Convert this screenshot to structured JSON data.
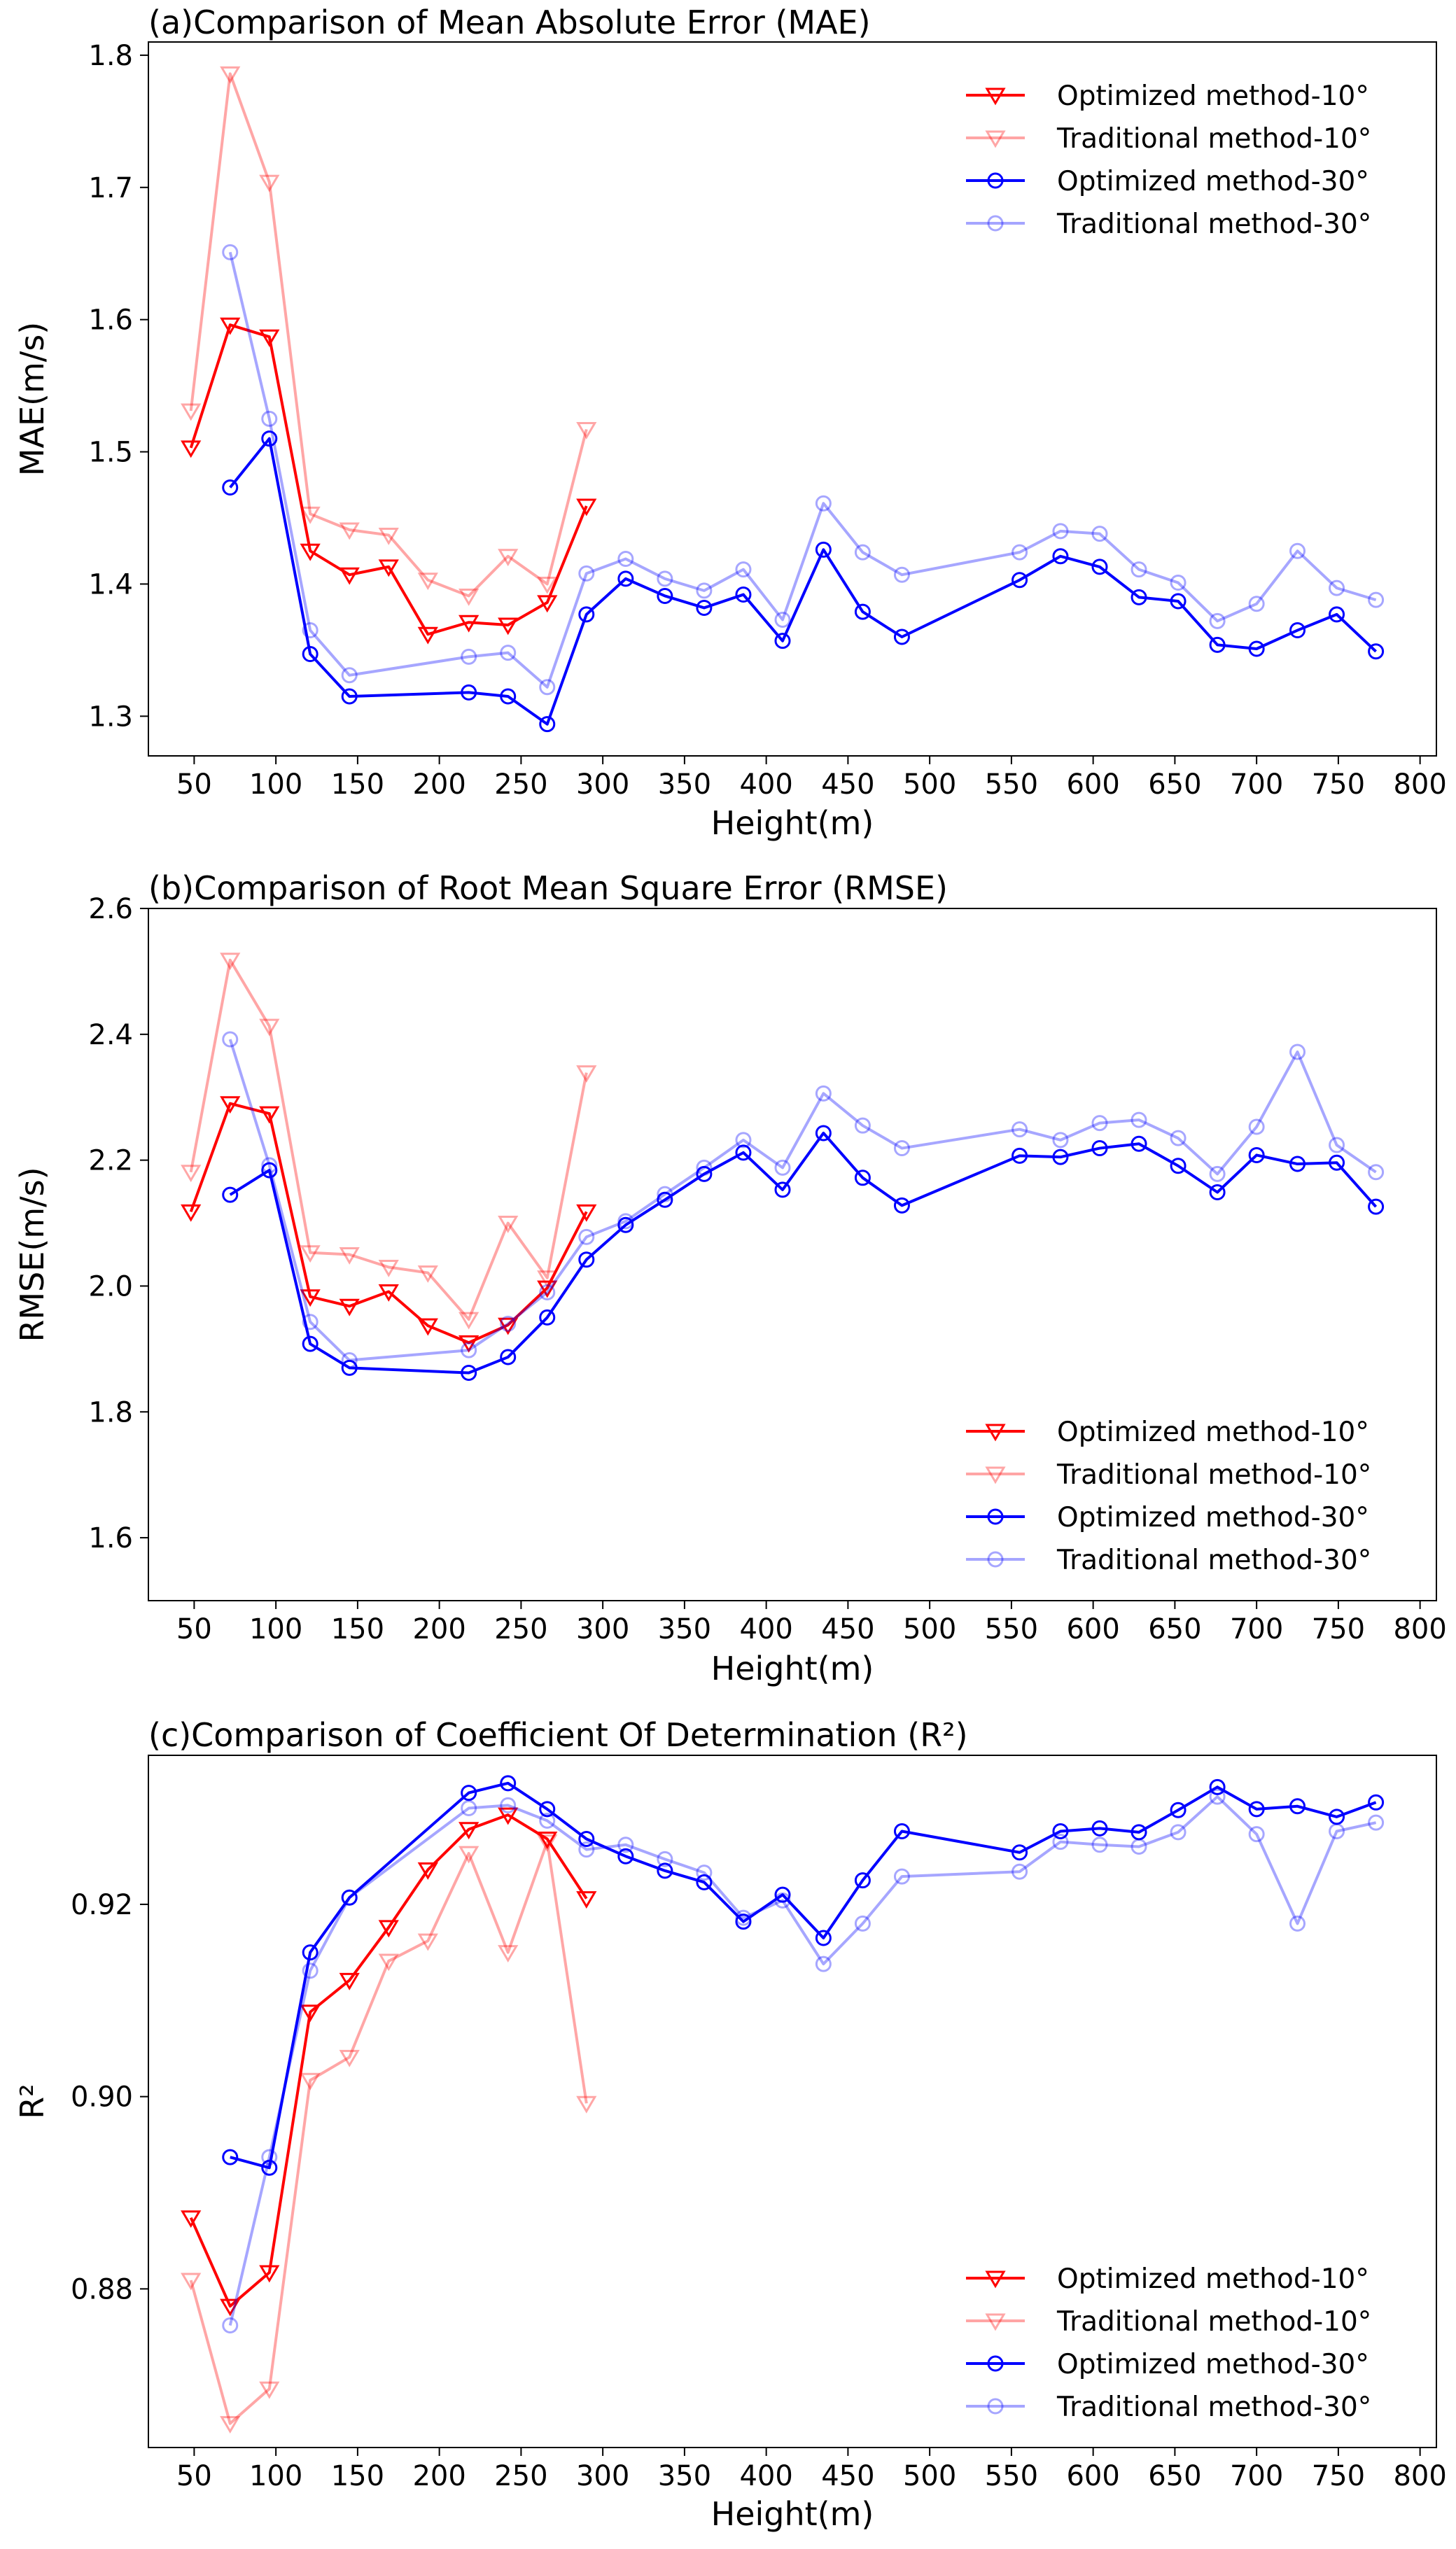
{
  "chart_data": [
    {
      "type": "line",
      "title": "(a)Comparison of Mean Absolute Error (MAE)",
      "xlabel": "Height(m)",
      "ylabel": "MAE(m/s)",
      "xlim": [
        22,
        810
      ],
      "ylim": [
        1.27,
        1.81
      ],
      "xticks": [
        50,
        100,
        150,
        200,
        250,
        300,
        350,
        400,
        450,
        500,
        550,
        600,
        650,
        700,
        750,
        800
      ],
      "xtick_labels": [
        "50",
        "100",
        "150",
        "200",
        "250",
        "300",
        "350",
        "400",
        "450",
        "500",
        "550",
        "600",
        "650",
        "700",
        "750",
        "800"
      ],
      "yticks": [
        1.3,
        1.4,
        1.5,
        1.6,
        1.7,
        1.8
      ],
      "ytick_labels": [
        "1.3",
        "1.4",
        "1.5",
        "1.6",
        "1.7",
        "1.8"
      ],
      "legend_position": "top-right",
      "series": [
        {
          "name": "Optimized method-10°",
          "color": "#ff0000",
          "opacity": 1,
          "marker": "triangle-down",
          "x": [
            48,
            72,
            96,
            121,
            145,
            169,
            193,
            218,
            242,
            266,
            290
          ],
          "y": [
            1.503,
            1.596,
            1.587,
            1.425,
            1.407,
            1.413,
            1.362,
            1.371,
            1.369,
            1.386,
            1.459
          ]
        },
        {
          "name": "Traditional method-10°",
          "color": "#ff0000",
          "opacity": 0.35,
          "marker": "triangle-down",
          "x": [
            48,
            72,
            96,
            121,
            145,
            169,
            193,
            218,
            242,
            266,
            290
          ],
          "y": [
            1.531,
            1.786,
            1.704,
            1.453,
            1.441,
            1.437,
            1.403,
            1.391,
            1.421,
            1.4,
            1.517
          ]
        },
        {
          "name": "Optimized method-30°",
          "color": "#0000ff",
          "opacity": 1,
          "marker": "circle",
          "x": [
            72,
            96,
            121,
            145,
            218,
            242,
            266,
            290,
            314,
            338,
            362,
            386,
            410,
            435,
            459,
            483,
            555,
            580,
            604,
            628,
            652,
            676,
            700,
            725,
            749,
            773
          ],
          "y": [
            1.473,
            1.51,
            1.347,
            1.315,
            1.318,
            1.315,
            1.294,
            1.377,
            1.404,
            1.391,
            1.382,
            1.392,
            1.357,
            1.426,
            1.379,
            1.36,
            1.403,
            1.421,
            1.413,
            1.39,
            1.387,
            1.354,
            1.351,
            1.365,
            1.377,
            1.349
          ]
        },
        {
          "name": "Traditional method-30°",
          "color": "#0000ff",
          "opacity": 0.35,
          "marker": "circle",
          "x": [
            72,
            96,
            121,
            145,
            218,
            242,
            266,
            290,
            314,
            338,
            362,
            386,
            410,
            435,
            459,
            483,
            555,
            580,
            604,
            628,
            652,
            676,
            700,
            725,
            749,
            773
          ],
          "y": [
            1.651,
            1.525,
            1.365,
            1.331,
            1.345,
            1.348,
            1.322,
            1.408,
            1.419,
            1.404,
            1.395,
            1.411,
            1.373,
            1.461,
            1.424,
            1.407,
            1.424,
            1.44,
            1.438,
            1.411,
            1.401,
            1.372,
            1.385,
            1.425,
            1.397,
            1.388
          ]
        }
      ]
    },
    {
      "type": "line",
      "title": "(b)Comparison of Root Mean Square Error (RMSE)",
      "xlabel": "Height(m)",
      "ylabel": "RMSE(m/s)",
      "xlim": [
        22,
        810
      ],
      "ylim": [
        1.5,
        2.6
      ],
      "xticks": [
        50,
        100,
        150,
        200,
        250,
        300,
        350,
        400,
        450,
        500,
        550,
        600,
        650,
        700,
        750,
        800
      ],
      "xtick_labels": [
        "50",
        "100",
        "150",
        "200",
        "250",
        "300",
        "350",
        "400",
        "450",
        "500",
        "550",
        "600",
        "650",
        "700",
        "750",
        "800"
      ],
      "yticks": [
        1.6,
        1.8,
        2.0,
        2.2,
        2.4,
        2.6
      ],
      "ytick_labels": [
        "1.6",
        "1.8",
        "2.0",
        "2.2",
        "2.4",
        "2.6"
      ],
      "legend_position": "bottom-right",
      "series": [
        {
          "name": "Optimized method-10°",
          "color": "#ff0000",
          "opacity": 1,
          "marker": "triangle-down",
          "x": [
            48,
            72,
            96,
            121,
            145,
            169,
            193,
            218,
            242,
            266,
            290
          ],
          "y": [
            2.118,
            2.29,
            2.274,
            1.983,
            1.968,
            1.991,
            1.937,
            1.91,
            1.938,
            1.997,
            2.118
          ]
        },
        {
          "name": "Traditional method-10°",
          "color": "#ff0000",
          "opacity": 0.35,
          "marker": "triangle-down",
          "x": [
            48,
            72,
            96,
            121,
            145,
            169,
            193,
            218,
            242,
            266,
            290
          ],
          "y": [
            2.181,
            2.518,
            2.413,
            2.053,
            2.05,
            2.03,
            2.021,
            1.947,
            2.1,
            2.013,
            2.339
          ]
        },
        {
          "name": "Optimized method-30°",
          "color": "#0000ff",
          "opacity": 1,
          "marker": "circle",
          "x": [
            72,
            96,
            121,
            145,
            218,
            242,
            266,
            290,
            314,
            338,
            362,
            386,
            410,
            435,
            459,
            483,
            555,
            580,
            604,
            628,
            652,
            676,
            700,
            725,
            749,
            773
          ],
          "y": [
            2.145,
            2.184,
            1.908,
            1.87,
            1.862,
            1.887,
            1.95,
            2.042,
            2.097,
            2.137,
            2.178,
            2.212,
            2.153,
            2.243,
            2.172,
            2.128,
            2.207,
            2.205,
            2.219,
            2.226,
            2.191,
            2.149,
            2.208,
            2.194,
            2.196,
            2.126
          ]
        },
        {
          "name": "Traditional method-30°",
          "color": "#0000ff",
          "opacity": 0.35,
          "marker": "circle",
          "x": [
            72,
            96,
            121,
            145,
            218,
            242,
            266,
            290,
            314,
            338,
            362,
            386,
            410,
            435,
            459,
            483,
            555,
            580,
            604,
            628,
            652,
            676,
            700,
            725,
            749,
            773
          ],
          "y": [
            2.392,
            2.192,
            1.943,
            1.882,
            1.898,
            1.94,
            1.99,
            2.078,
            2.103,
            2.146,
            2.188,
            2.232,
            2.188,
            2.306,
            2.255,
            2.219,
            2.249,
            2.232,
            2.259,
            2.264,
            2.235,
            2.178,
            2.253,
            2.372,
            2.224,
            2.181
          ]
        }
      ]
    },
    {
      "type": "line",
      "title": "(c)Comparison of Coefficient Of Determination (R²)",
      "xlabel": "Height(m)",
      "ylabel": "R²",
      "xlim": [
        22,
        810
      ],
      "ylim": [
        0.8635,
        0.9355
      ],
      "xticks": [
        50,
        100,
        150,
        200,
        250,
        300,
        350,
        400,
        450,
        500,
        550,
        600,
        650,
        700,
        750,
        800
      ],
      "xtick_labels": [
        "50",
        "100",
        "150",
        "200",
        "250",
        "300",
        "350",
        "400",
        "450",
        "500",
        "550",
        "600",
        "650",
        "700",
        "750",
        "800"
      ],
      "yticks": [
        0.88,
        0.9,
        0.92
      ],
      "ytick_labels": [
        "0.88",
        "0.90",
        "0.92"
      ],
      "legend_position": "bottom-right",
      "series": [
        {
          "name": "Optimized method-10°",
          "color": "#ff0000",
          "opacity": 1,
          "marker": "triangle-down",
          "x": [
            48,
            72,
            96,
            121,
            145,
            169,
            193,
            218,
            242,
            266,
            290
          ],
          "y": [
            0.8874,
            0.8782,
            0.8817,
            0.9088,
            0.9121,
            0.9176,
            0.9236,
            0.9278,
            0.9293,
            0.9268,
            0.9206
          ]
        },
        {
          "name": "Traditional method-10°",
          "color": "#ff0000",
          "opacity": 0.35,
          "marker": "triangle-down",
          "x": [
            48,
            72,
            96,
            121,
            145,
            169,
            193,
            218,
            242,
            266,
            290
          ],
          "y": [
            0.8809,
            0.866,
            0.8696,
            0.9017,
            0.9041,
            0.9141,
            0.9162,
            0.9253,
            0.915,
            0.9265,
            0.8993
          ]
        },
        {
          "name": "Optimized method-30°",
          "color": "#0000ff",
          "opacity": 1,
          "marker": "circle",
          "x": [
            72,
            96,
            121,
            145,
            218,
            242,
            266,
            290,
            314,
            338,
            362,
            386,
            410,
            435,
            459,
            483,
            555,
            580,
            604,
            628,
            652,
            676,
            700,
            725,
            749,
            773
          ],
          "y": [
            0.8937,
            0.8926,
            0.915,
            0.9207,
            0.9316,
            0.9326,
            0.9299,
            0.9268,
            0.925,
            0.9235,
            0.9223,
            0.9182,
            0.921,
            0.9165,
            0.9225,
            0.9276,
            0.9254,
            0.9276,
            0.9279,
            0.9275,
            0.9298,
            0.9322,
            0.9299,
            0.9302,
            0.9291,
            0.9306
          ]
        },
        {
          "name": "Traditional method-30°",
          "color": "#0000ff",
          "opacity": 0.35,
          "marker": "circle",
          "x": [
            72,
            96,
            121,
            145,
            218,
            242,
            266,
            290,
            314,
            338,
            362,
            386,
            410,
            435,
            459,
            483,
            555,
            580,
            604,
            628,
            652,
            676,
            700,
            725,
            749,
            773
          ],
          "y": [
            0.8762,
            0.8937,
            0.9131,
            0.9207,
            0.93,
            0.9303,
            0.9287,
            0.9257,
            0.9262,
            0.9247,
            0.9233,
            0.9186,
            0.9204,
            0.9138,
            0.918,
            0.9229,
            0.9234,
            0.9265,
            0.9262,
            0.926,
            0.9275,
            0.9312,
            0.9273,
            0.918,
            0.9276,
            0.9285
          ]
        }
      ]
    }
  ]
}
